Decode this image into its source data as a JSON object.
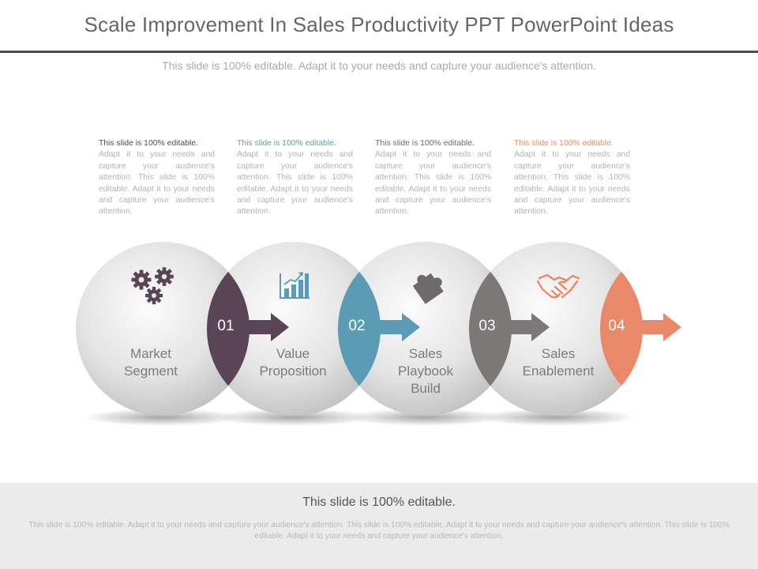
{
  "title": "Scale Improvement In Sales Productivity PPT PowerPoint Ideas",
  "subtitle": "This slide is 100% editable. Adapt it to your needs and capture your audience's attention.",
  "colors": {
    "purple": "#5a4557",
    "teal": "#5b9cb4",
    "gray": "#7c7878",
    "orange": "#e9896a",
    "rule": "#4d4d4d",
    "footer_bg": "#ebebeb"
  },
  "steps": [
    {
      "number": "01",
      "label_line1": "Market",
      "label_line2": "Segment",
      "label_line3": "",
      "icon": "gears-icon",
      "desc_head": "This slide is 100% editable.",
      "desc_body": "Adapt it to your needs and capture your audience's attention. This slide is 100% editable. Adapt it to your needs and capture your audience's attention."
    },
    {
      "number": "02",
      "label_line1": "Value",
      "label_line2": "Proposition",
      "label_line3": "",
      "icon": "bar-chart-icon",
      "desc_head": "This slide is 100% editable.",
      "desc_body": "Adapt it to your needs and capture your audience's attention. This slide is 100% editable. Adapt it to your needs and capture your audience's attention."
    },
    {
      "number": "03",
      "label_line1": "Sales",
      "label_line2": "Playbook",
      "label_line3": "Build",
      "icon": "puzzle-icon",
      "desc_head": "This slide is 100% editable.",
      "desc_body": "Adapt it to your needs and capture your audience's attention. This slide is 100% editable. Adapt it to your needs and capture your audience's attention."
    },
    {
      "number": "04",
      "label_line1": "Sales",
      "label_line2": "Enablement",
      "label_line3": "",
      "icon": "handshake-icon",
      "desc_head": "This slide is 100% editable.",
      "desc_body": "Adapt it to your needs and capture your audience's attention. This slide is 100% editable. Adapt it to your needs and capture your audience's attention."
    }
  ],
  "footer": {
    "title": "This slide is 100% editable.",
    "text": "This slide is 100% editable. Adapt it to your needs and capture your audience's attention. This slide is 100% editable. Adapt it to your needs and capture your audience's attention. This slide is 100% editable. Adapt it to your needs and capture your audience's attention."
  }
}
